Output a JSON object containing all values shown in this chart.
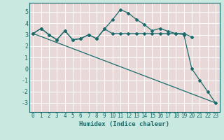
{
  "bg_color": "#c8e8e0",
  "plot_bg_color": "#e8d8d8",
  "grid_color": "#ffffff",
  "line_color": "#1a6b6b",
  "xlabel": "Humidex (Indice chaleur)",
  "ylim": [
    -3.8,
    5.8
  ],
  "xlim": [
    -0.5,
    23.5
  ],
  "yticks": [
    -3,
    -2,
    -1,
    0,
    1,
    2,
    3,
    4,
    5
  ],
  "xticks": [
    0,
    1,
    2,
    3,
    4,
    5,
    6,
    7,
    8,
    9,
    10,
    11,
    12,
    13,
    14,
    15,
    16,
    17,
    18,
    19,
    20,
    21,
    22,
    23
  ],
  "series1_x": [
    0,
    1,
    2,
    3,
    4,
    5,
    6,
    7,
    8,
    9,
    10,
    11,
    12,
    13,
    14,
    15,
    16,
    17,
    18,
    19,
    20,
    21,
    22,
    23
  ],
  "series1_y": [
    3.1,
    3.55,
    3.0,
    2.55,
    3.35,
    2.55,
    2.65,
    3.0,
    2.65,
    3.5,
    4.3,
    5.2,
    4.9,
    4.35,
    3.9,
    3.35,
    3.55,
    3.3,
    3.1,
    3.0,
    0.0,
    -1.0,
    -2.0,
    -3.0
  ],
  "series2_x": [
    0,
    1,
    2,
    3,
    4,
    5,
    6,
    7,
    8,
    9,
    10,
    11,
    12,
    13,
    14,
    15,
    16,
    17,
    18,
    19,
    20
  ],
  "series2_y": [
    3.1,
    3.55,
    3.0,
    2.55,
    3.35,
    2.55,
    2.65,
    3.0,
    2.65,
    3.5,
    3.1,
    3.1,
    3.1,
    3.1,
    3.1,
    3.1,
    3.1,
    3.1,
    3.1,
    3.1,
    2.8
  ],
  "series3_x": [
    0,
    23
  ],
  "series3_y": [
    3.1,
    -3.0
  ]
}
